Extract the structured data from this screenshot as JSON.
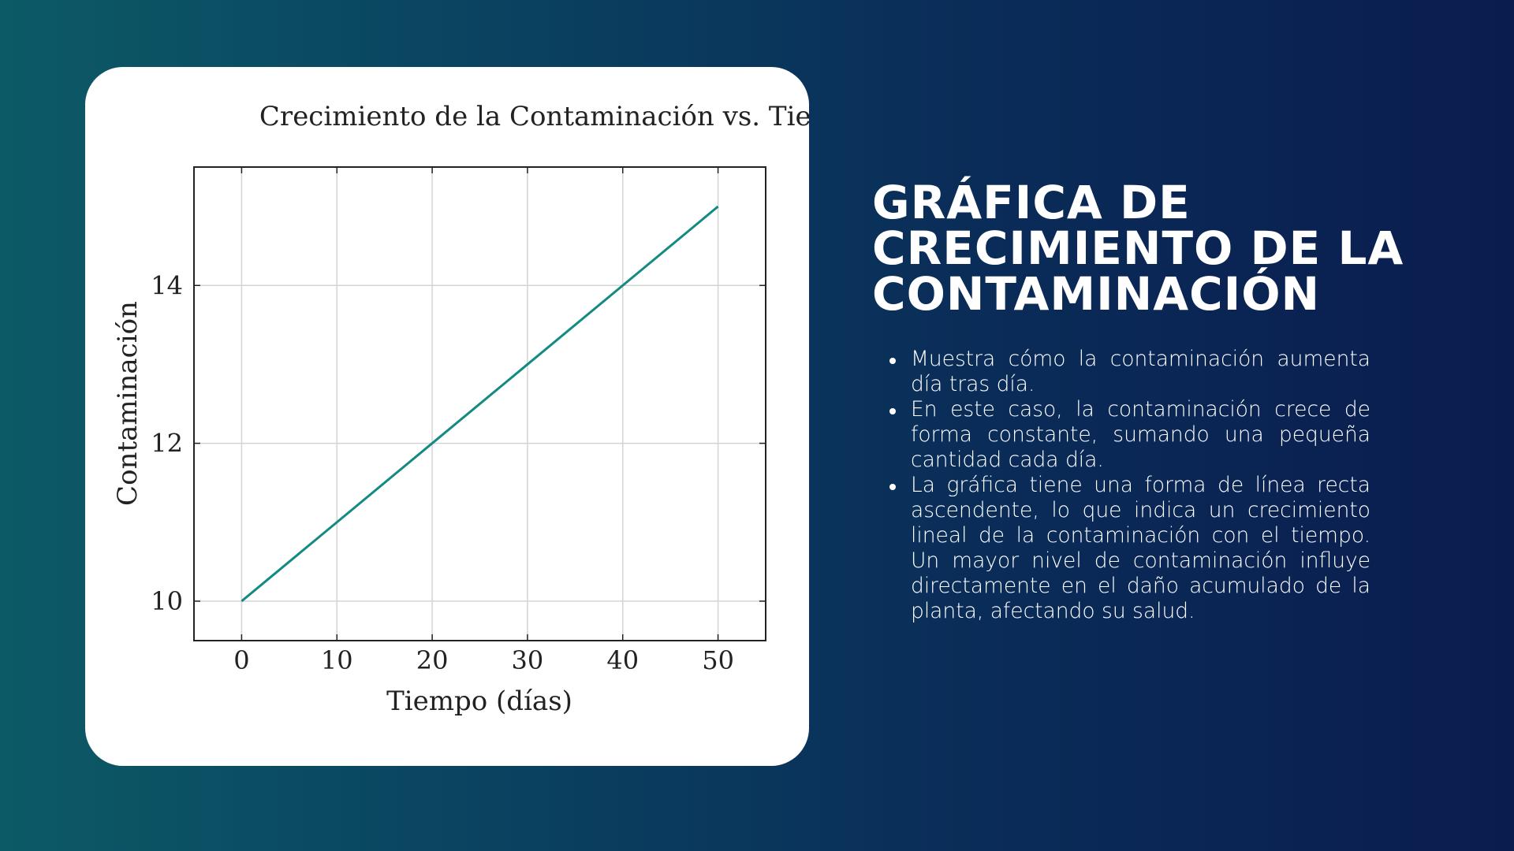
{
  "chart_data": {
    "type": "line",
    "title": "Crecimiento de la Contaminación vs. Tiempo",
    "xlabel": "Tiempo (días)",
    "ylabel": "Contaminación",
    "x": [
      0,
      10,
      20,
      30,
      40,
      50
    ],
    "series": [
      {
        "values": [
          10,
          11,
          12,
          13,
          14,
          15
        ],
        "color": "#138a82"
      }
    ],
    "xlim": [
      -5,
      55
    ],
    "ylim": [
      9.5,
      15.5
    ],
    "xticks": [
      0,
      10,
      20,
      30,
      40,
      50
    ],
    "yticks": [
      10,
      12,
      14
    ],
    "grid": true
  },
  "side": {
    "heading_lines": [
      "GRÁFICA DE",
      "CRECIMIENTO DE LA",
      "CONTAMINACIÓN"
    ],
    "bullets": [
      "Muestra cómo la contaminación aumenta día tras día.",
      "En este caso, la contaminación crece de forma constante, sumando una pequeña cantidad cada día.",
      "La gráfica tiene una forma de línea recta ascendente, lo que indica un crecimiento lineal de la contaminación con el tiempo. Un mayor nivel de contaminación influye directamente en el daño acumulado de la planta, afectando su salud."
    ]
  }
}
